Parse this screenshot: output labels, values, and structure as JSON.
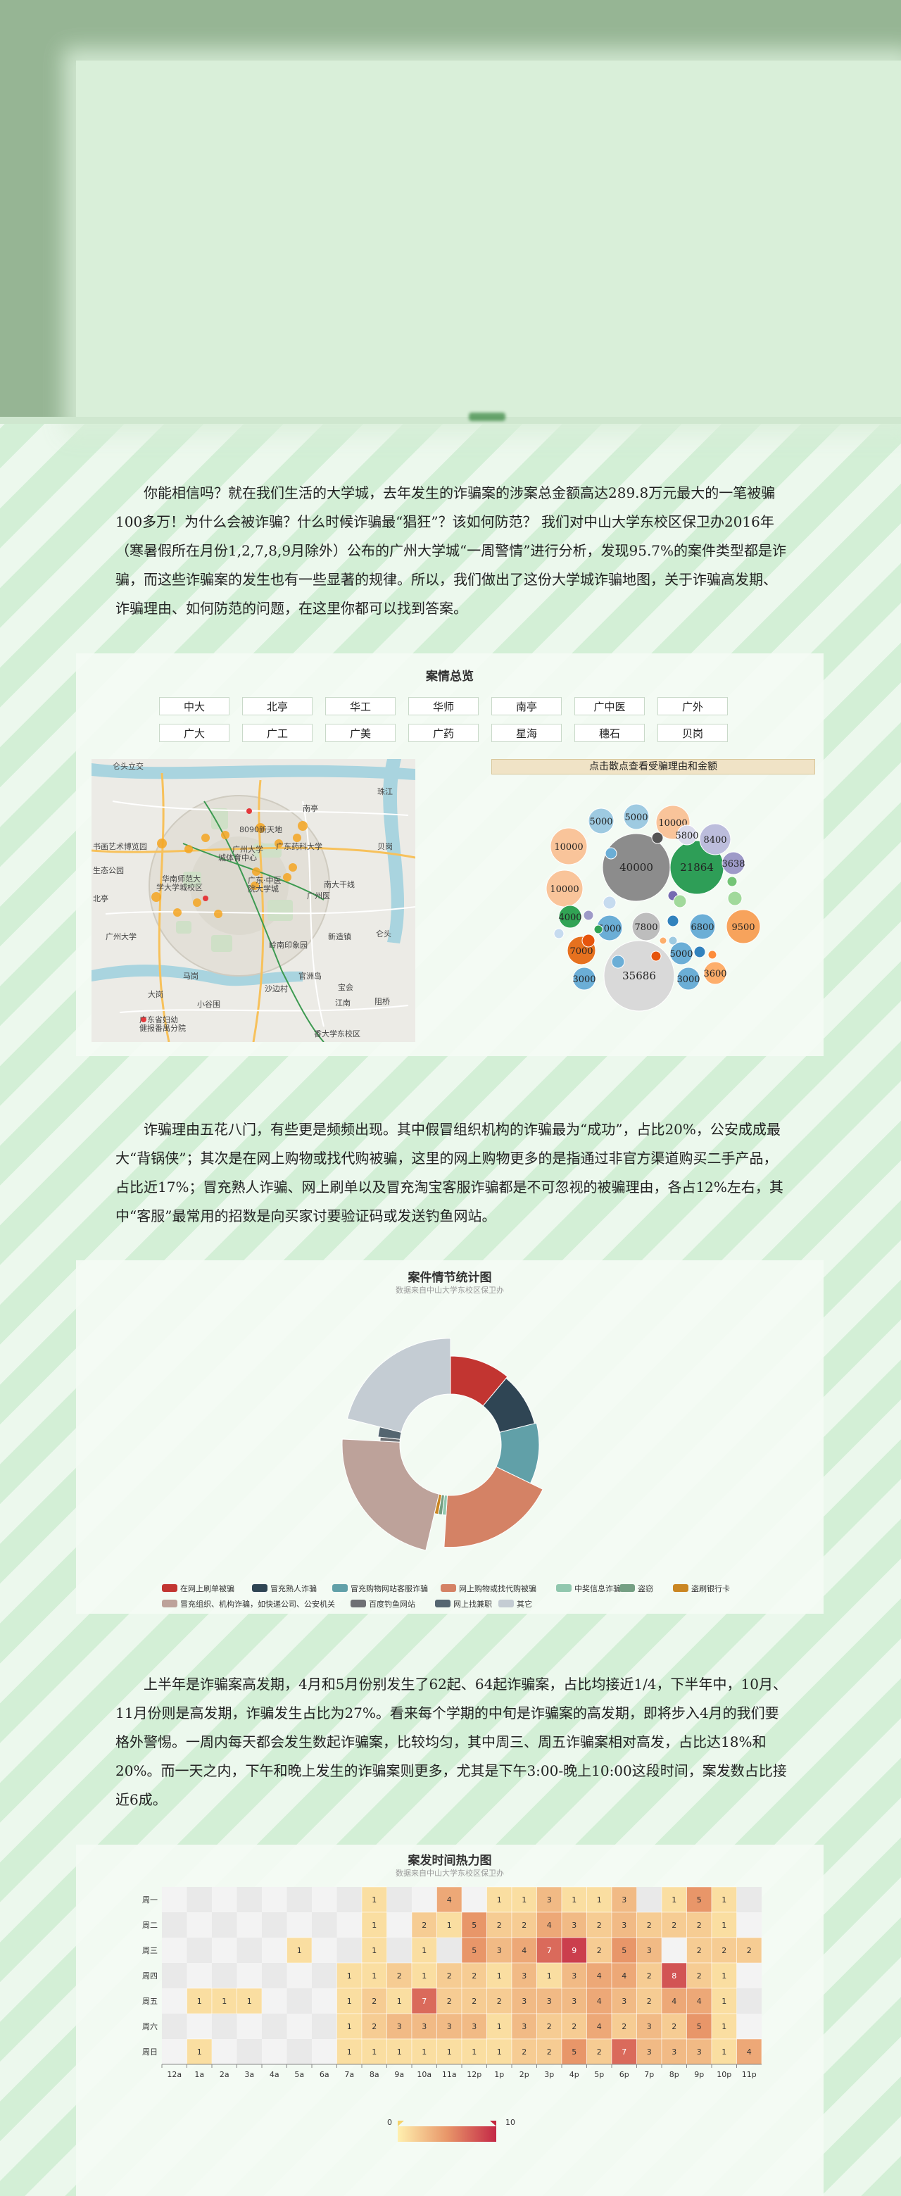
{
  "intro": {
    "paragraph": "你能相信吗？就在我们生活的大学城，去年发生的诈骗案的涉案总金额高达289.8万元最大的一笔被骗100多万！为什么会被诈骗？什么时候诈骗最“猖狂”？该如何防范？ 我们对中山大学东校区保卫办2016年（寒暑假所在月份1,2,7,8,9月除外）公布的广州大学城“一周警情”进行分析，发现95.7%的案件类型都是诈骗，而这些诈骗案的发生也有一些显著的规律。所以，我们做出了这份大学城诈骗地图，关于诈骗高发期、诈骗理由、如何防范的问题，在这里你都可以找到答案。"
  },
  "overview": {
    "title": "案情总览",
    "campuses_row1": [
      "中大",
      "北亭",
      "华工",
      "华师",
      "南亭",
      "广中医",
      "广外"
    ],
    "campuses_row2": [
      "广大",
      "广工",
      "广美",
      "广药",
      "星海",
      "穗石",
      "贝岗"
    ],
    "bubble_hint": "点击散点查看受骗理由和金额",
    "map_labels": [
      "仑头立交",
      "8090新天地",
      "南亭",
      "书画艺术博览园",
      "生态公园",
      "广州大学",
      "城体育中心",
      "广东药科大学",
      "华南师范大",
      "学大学城校区",
      "广东·中医",
      "院大学城",
      "广州医",
      "广州大学",
      "新造镇",
      "仑头",
      "贝岗",
      "马岗",
      "大岗",
      "岭南印象园",
      "沙边村",
      "官洲岛",
      "宝会",
      "广东省妇幼",
      "健报番禺分院",
      "江南",
      "小谷围",
      "北亭",
      "南大干线",
      "阻桥",
      "珠江",
      "香大学东校区"
    ],
    "bubbles": [
      {
        "label": "40000",
        "color": "#8c8c8c"
      },
      {
        "label": "35686",
        "color": "#d9d9d9"
      },
      {
        "label": "21864",
        "color": "#2e9e57"
      },
      {
        "label": "10000",
        "color": "#f9c49a"
      },
      {
        "label": "10000",
        "color": "#f9c49a"
      },
      {
        "label": "10000",
        "color": "#f9c49a"
      },
      {
        "label": "9500",
        "color": "#f7a35c"
      },
      {
        "label": "8400",
        "color": "#bcbddc"
      },
      {
        "label": "7800",
        "color": "#bdbdbd"
      },
      {
        "label": "7000",
        "color": "#e6711f"
      },
      {
        "label": "6800",
        "color": "#6baed6"
      },
      {
        "label": "5800",
        "color": "#dadaeb"
      },
      {
        "label": "5000",
        "color": "#9ecae1"
      },
      {
        "label": "5000",
        "color": "#9ecae1"
      },
      {
        "label": "5000",
        "color": "#6baed6"
      },
      {
        "label": "5000",
        "color": "#6baed6"
      },
      {
        "label": "4000",
        "color": "#31a354"
      },
      {
        "label": "3638",
        "color": "#9e9ac8"
      },
      {
        "label": "3600",
        "color": "#fdae6b"
      },
      {
        "label": "3000",
        "color": "#6baed6"
      },
      {
        "label": "3000",
        "color": "#6baed6"
      }
    ]
  },
  "reasons": {
    "paragraph": "诈骗理由五花八门，有些更是频频出现。其中假冒组织机构的诈骗最为“成功”，占比20%，公安成成最大“背锅侠”；其次是在网上购物或找代购被骗，这里的网上购物更多的是指通过非官方渠道购买二手产品，占比近17%；冒充熟人诈骗、网上刷单以及冒充淘宝客服诈骗都是不可忽视的被骗理由，各占12%左右，其中“客服”最常用的招数是向买家讨要验证码或发送钓鱼网站。"
  },
  "donut": {
    "title": "案件情节统计图",
    "subtitle": "数据来自中山大学东校区保卫办",
    "legend": [
      {
        "label": "在网上刷单被骗",
        "color": "#c23531"
      },
      {
        "label": "冒充熟人诈骗",
        "color": "#2f4554"
      },
      {
        "label": "冒充购物网站客服诈骗",
        "color": "#61a0a8"
      },
      {
        "label": "网上购物或找代购被骗",
        "color": "#d48265"
      },
      {
        "label": "中奖信息诈骗",
        "color": "#91c7ae"
      },
      {
        "label": "盗窃",
        "color": "#749f83"
      },
      {
        "label": "盗刷银行卡",
        "color": "#ca8622"
      },
      {
        "label": "冒充组织、机构诈骗，如快递公司、公安机关",
        "color": "#bda29a"
      },
      {
        "label": "百度钓鱼网站",
        "color": "#6e7074"
      },
      {
        "label": "网上找兼职",
        "color": "#546570"
      },
      {
        "label": "其它",
        "color": "#c4ccd3"
      }
    ],
    "chart_data": {
      "type": "pie",
      "categories": [
        "在网上刷单被骗",
        "冒充熟人诈骗",
        "冒充购物网站客服诈骗",
        "网上购物或找代购被骗",
        "中奖信息诈骗",
        "盗窃",
        "盗刷银行卡",
        "冒充组织、机构诈骗，如快递公司、公安机关",
        "百度钓鱼网站",
        "网上找兼职",
        "其它"
      ],
      "values": [
        10,
        9,
        10,
        17,
        0.8,
        0.8,
        0.8,
        20,
        0.8,
        2,
        19
      ],
      "title": "案件情节统计图"
    }
  },
  "time": {
    "paragraph": "上半年是诈骗案高发期，4月和5月份别发生了62起、64起诈骗案，占比均接近1/4，下半年中，10月、11月份则是高发期，诈骗发生占比为27%。看来每个学期的中旬是诈骗案的高发期，即将步入4月的我们要格外警惕。一周内每天都会发生数起诈骗案，比较均匀，其中周三、周五诈骗案相对高发，占比达18%和20%。而一天之内，下午和晚上发生的诈骗案则更多，尤其是下午3:00-晚上10:00这段时间，案发数占比接近6成。"
  },
  "heatmap": {
    "title": "案发时间热力图",
    "subtitle": "数据来自中山大学东校区保卫办",
    "legend_min": "0",
    "legend_max": "10",
    "chart_data": {
      "type": "heatmap",
      "x": [
        "12a",
        "1a",
        "2a",
        "3a",
        "4a",
        "5a",
        "6a",
        "7a",
        "8a",
        "9a",
        "10a",
        "11a",
        "12p",
        "1p",
        "2p",
        "3p",
        "4p",
        "5p",
        "6p",
        "7p",
        "8p",
        "9p",
        "10p",
        "11p"
      ],
      "y": [
        "周一",
        "周二",
        "周三",
        "周四",
        "周五",
        "周六",
        "周日"
      ],
      "values": [
        [
          0,
          0,
          0,
          0,
          0,
          0,
          0,
          0,
          1,
          0,
          0,
          4,
          0,
          1,
          1,
          3,
          1,
          1,
          3,
          0,
          1,
          5,
          1,
          0
        ],
        [
          0,
          0,
          0,
          0,
          0,
          0,
          0,
          0,
          1,
          0,
          2,
          1,
          5,
          2,
          2,
          4,
          3,
          2,
          3,
          2,
          2,
          2,
          1,
          0
        ],
        [
          0,
          0,
          0,
          0,
          0,
          1,
          0,
          0,
          1,
          0,
          1,
          0,
          5,
          3,
          4,
          7,
          9,
          2,
          5,
          3,
          0,
          2,
          2,
          2
        ],
        [
          0,
          0,
          0,
          0,
          0,
          0,
          0,
          1,
          1,
          2,
          1,
          2,
          2,
          1,
          3,
          1,
          3,
          4,
          4,
          2,
          8,
          2,
          1,
          0
        ],
        [
          0,
          1,
          1,
          1,
          0,
          0,
          0,
          1,
          2,
          1,
          7,
          2,
          2,
          2,
          3,
          3,
          3,
          4,
          3,
          2,
          4,
          4,
          1,
          0
        ],
        [
          0,
          0,
          0,
          0,
          0,
          0,
          0,
          1,
          2,
          3,
          3,
          3,
          3,
          1,
          3,
          2,
          2,
          4,
          2,
          3,
          2,
          5,
          1,
          0
        ],
        [
          0,
          1,
          0,
          0,
          0,
          0,
          0,
          1,
          1,
          1,
          1,
          1,
          1,
          1,
          2,
          2,
          5,
          2,
          7,
          3,
          3,
          3,
          1,
          4
        ]
      ],
      "range": [
        0,
        10
      ]
    }
  }
}
